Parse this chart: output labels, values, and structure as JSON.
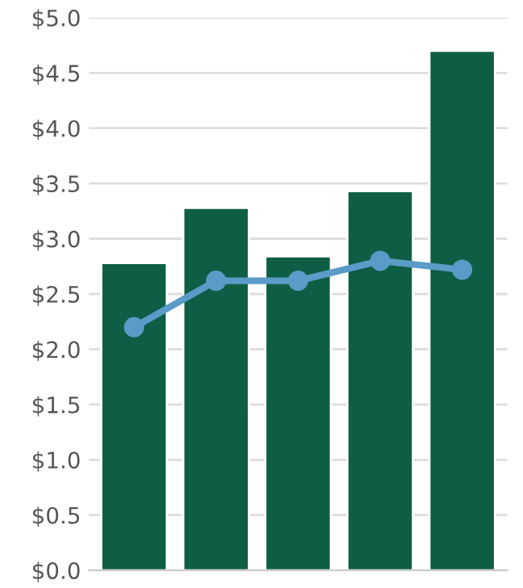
{
  "chart_data": {
    "type": "bar",
    "categories": [
      null,
      null,
      null,
      null,
      null
    ],
    "series": [
      {
        "color": "#0e5e45",
        "values": [
          2.78,
          3.28,
          2.84,
          3.43,
          4.7
        ]
      },
      {
        "type": "line",
        "color": "#5b9bc8",
        "values": [
          2.2,
          2.62,
          2.62,
          2.8,
          2.72
        ],
        "marker": "circle"
      }
    ],
    "ylim": [
      0,
      5
    ],
    "yticks": [
      {
        "value": 0,
        "label": "$0.0"
      },
      {
        "value": 0.5,
        "label": "$0.5"
      },
      {
        "value": 1,
        "label": "$1.0"
      },
      {
        "value": 1.5,
        "label": "$1.5"
      },
      {
        "value": 2,
        "label": "$2.0"
      },
      {
        "value": 2.5,
        "label": "$2.5"
      },
      {
        "value": 3,
        "label": "$3.0"
      },
      {
        "value": 3.5,
        "label": "$3.5"
      },
      {
        "value": 4,
        "label": "$4.0"
      },
      {
        "value": 4.5,
        "label": "$4.5"
      },
      {
        "value": 5,
        "label": "$5.0"
      }
    ],
    "grid": "y",
    "legend": false
  }
}
